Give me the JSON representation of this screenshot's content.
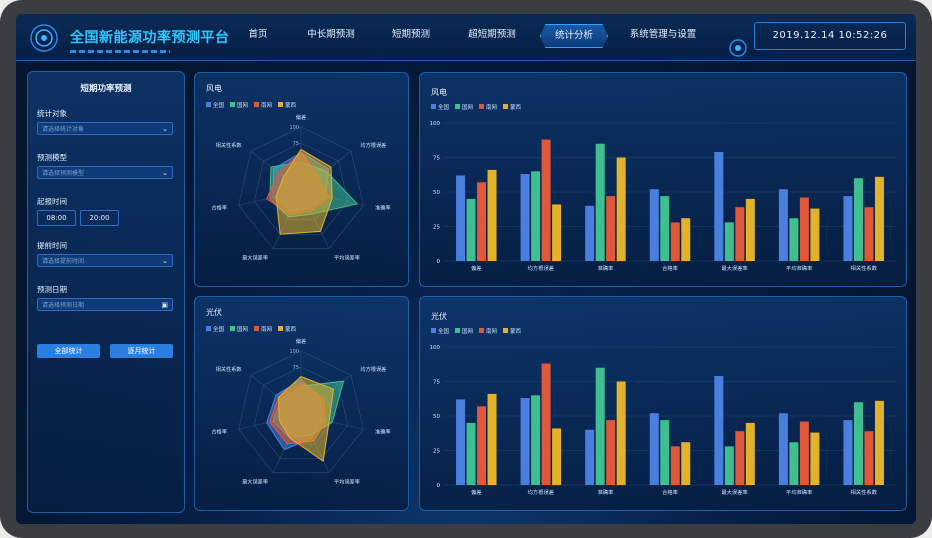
{
  "header": {
    "title": "全国新能源功率预测平台",
    "nav": [
      "首页",
      "中长期预测",
      "短期预测",
      "超短期预测",
      "统计分析",
      "系统管理与设置"
    ],
    "active_nav": "统计分析",
    "datetime": "2019.12.14  10:52:26"
  },
  "sidebar": {
    "title": "短期功率预测",
    "stat_object": {
      "label": "统计对象",
      "placeholder": "请选择统计对象"
    },
    "model": {
      "label": "预测模型",
      "placeholder": "请选择预测模型"
    },
    "time": {
      "label": "起报时间",
      "t1": "08:00",
      "t2": "20:00"
    },
    "lead": {
      "label": "提前时间",
      "placeholder": "请选择提前时间"
    },
    "date": {
      "label": "预测日期",
      "placeholder": "请选择预测日期"
    },
    "btn_all": "全部统计",
    "btn_month": "逐月统计"
  },
  "colors": {
    "全国": "#4a7fe0",
    "国网": "#3fbf8f",
    "南网": "#e0583a",
    "蒙西": "#e2b32a"
  },
  "chart_data": [
    {
      "type": "radar",
      "panel": "wind-radar",
      "title": "风电",
      "legend": [
        "全国",
        "国网",
        "南网",
        "蒙西"
      ],
      "axes": [
        "偏差",
        "均方根误差",
        "准确率",
        "平均误差率",
        "最大误差率",
        "合格率",
        "相关性系数"
      ],
      "scale_labels": [
        "100",
        "75"
      ],
      "series": [
        {
          "name": "全国",
          "values": [
            60,
            55,
            40,
            30,
            35,
            45,
            55
          ]
        },
        {
          "name": "国网",
          "values": [
            45,
            50,
            90,
            40,
            45,
            50,
            60
          ]
        },
        {
          "name": "南网",
          "values": [
            60,
            35,
            45,
            35,
            40,
            55,
            45
          ]
        },
        {
          "name": "蒙西",
          "values": [
            65,
            60,
            50,
            70,
            75,
            40,
            35
          ]
        }
      ]
    },
    {
      "type": "bar",
      "panel": "wind-bar",
      "title": "风电",
      "categories": [
        "偏差",
        "均方根误差",
        "准确率",
        "合格率",
        "最大误差率",
        "平均准确率",
        "相关性系数"
      ],
      "ylim": [
        0,
        100
      ],
      "yticks": [
        0,
        25,
        50,
        75,
        100
      ],
      "series": [
        {
          "name": "全国",
          "values": [
            62,
            63,
            40,
            52,
            79,
            52,
            47
          ]
        },
        {
          "name": "国网",
          "values": [
            45,
            65,
            85,
            47,
            28,
            31,
            60
          ]
        },
        {
          "name": "南网",
          "values": [
            57,
            88,
            47,
            28,
            39,
            46,
            39
          ]
        },
        {
          "name": "蒙西",
          "values": [
            66,
            41,
            75,
            31,
            45,
            38,
            61
          ]
        }
      ]
    },
    {
      "type": "radar",
      "panel": "pv-radar",
      "title": "光伏",
      "legend": [
        "全国",
        "国网",
        "南网",
        "蒙西"
      ],
      "axes": [
        "偏差",
        "均方根误差",
        "准确率",
        "平均误差率",
        "最大误差率",
        "合格率",
        "相关性系数"
      ],
      "scale_labels": [
        "100",
        "75"
      ],
      "series": [
        {
          "name": "全国",
          "values": [
            55,
            40,
            35,
            40,
            60,
            55,
            50
          ]
        },
        {
          "name": "国网",
          "values": [
            45,
            85,
            50,
            35,
            40,
            45,
            40
          ]
        },
        {
          "name": "南网",
          "values": [
            50,
            45,
            40,
            45,
            50,
            50,
            45
          ]
        },
        {
          "name": "蒙西",
          "values": [
            60,
            65,
            45,
            80,
            40,
            35,
            45
          ]
        }
      ]
    },
    {
      "type": "bar",
      "panel": "pv-bar",
      "title": "光伏",
      "categories": [
        "偏差",
        "均方根误差",
        "准确率",
        "合格率",
        "最大误差率",
        "平均准确率",
        "相关性系数"
      ],
      "ylim": [
        0,
        100
      ],
      "yticks": [
        0,
        25,
        50,
        75,
        100
      ],
      "series": [
        {
          "name": "全国",
          "values": [
            62,
            63,
            40,
            52,
            79,
            52,
            47
          ]
        },
        {
          "name": "国网",
          "values": [
            45,
            65,
            85,
            47,
            28,
            31,
            60
          ]
        },
        {
          "name": "南网",
          "values": [
            57,
            88,
            47,
            28,
            39,
            46,
            39
          ]
        },
        {
          "name": "蒙西",
          "values": [
            66,
            41,
            75,
            31,
            45,
            38,
            61
          ]
        }
      ]
    }
  ]
}
